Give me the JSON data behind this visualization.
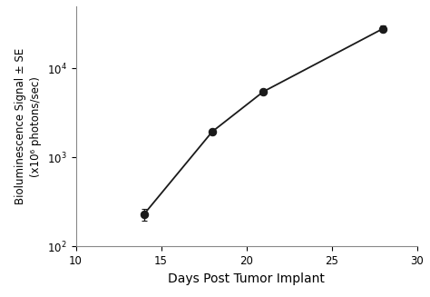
{
  "x": [
    14,
    18,
    21,
    28
  ],
  "y": [
    230,
    1950,
    5500,
    28000
  ],
  "yerr_lo": [
    35,
    150,
    400,
    2200
  ],
  "yerr_hi": [
    35,
    150,
    400,
    2200
  ],
  "xlabel": "Days Post Tumor Implant",
  "ylabel_line1": "Bioluminescence Signal ± SE",
  "ylabel_line2": "(x10⁶ photons/sec)",
  "xlim": [
    10,
    30
  ],
  "ylim": [
    100,
    50000
  ],
  "xticks": [
    10,
    15,
    20,
    25,
    30
  ],
  "yticks": [
    100,
    1000,
    10000
  ],
  "background_color": "#ffffff",
  "line_color": "#1a1a1a",
  "marker_color": "#1a1a1a",
  "marker_size": 6,
  "linewidth": 1.3,
  "xlabel_fontsize": 10,
  "ylabel_fontsize": 8.5,
  "tick_fontsize": 8.5
}
